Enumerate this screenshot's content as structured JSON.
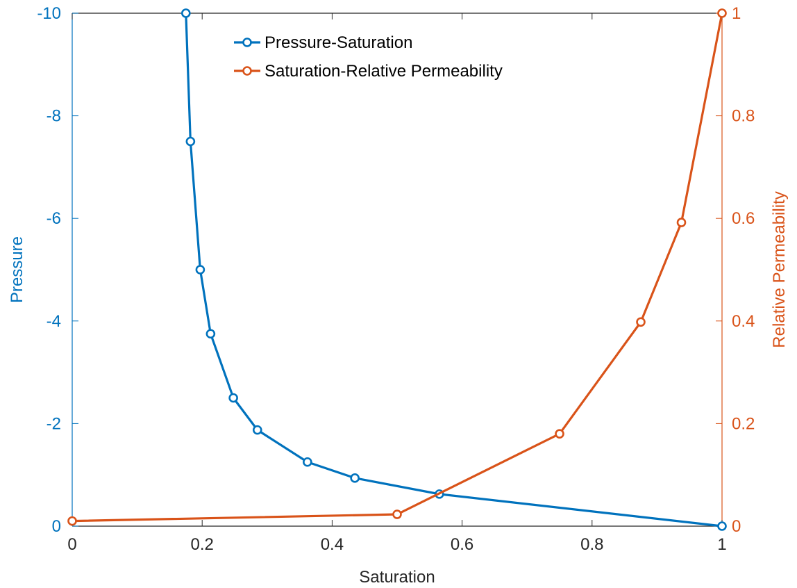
{
  "chart_data": {
    "type": "line",
    "xlabel": "Saturation",
    "ylabel_left": "Pressure",
    "ylabel_right": "Relative Permeability",
    "xlim": [
      0,
      1
    ],
    "ylim_left": [
      0,
      -10
    ],
    "ylim_right": [
      0,
      1
    ],
    "left_axis_reversed": true,
    "grid": false,
    "legend_position": "top-center",
    "x_ticks": [
      {
        "value": 0,
        "label": "0"
      },
      {
        "value": 0.2,
        "label": "0.2"
      },
      {
        "value": 0.4,
        "label": "0.4"
      },
      {
        "value": 0.6,
        "label": "0.6"
      },
      {
        "value": 0.8,
        "label": "0.8"
      },
      {
        "value": 1,
        "label": "1"
      }
    ],
    "left_ticks": [
      {
        "value": 0,
        "label": "0"
      },
      {
        "value": -2,
        "label": "-2"
      },
      {
        "value": -4,
        "label": "-4"
      },
      {
        "value": -6,
        "label": "-6"
      },
      {
        "value": -8,
        "label": "-8"
      },
      {
        "value": -10,
        "label": "-10"
      }
    ],
    "right_ticks": [
      {
        "value": 0,
        "label": "0"
      },
      {
        "value": 0.2,
        "label": "0.2"
      },
      {
        "value": 0.4,
        "label": "0.4"
      },
      {
        "value": 0.6,
        "label": "0.6"
      },
      {
        "value": 0.8,
        "label": "0.8"
      },
      {
        "value": 1,
        "label": "1"
      }
    ],
    "series": [
      {
        "name": "Pressure-Saturation",
        "axis": "left",
        "color": "#0072BD",
        "marker": "circle",
        "x": [
          0.175,
          0.182,
          0.197,
          0.213,
          0.248,
          0.285,
          0.362,
          0.435,
          0.565,
          1.0
        ],
        "y": [
          -10,
          -7.5,
          -5,
          -3.75,
          -2.5,
          -1.875,
          -1.25,
          -0.9375,
          -0.625,
          0
        ]
      },
      {
        "name": "Saturation-Relative Permeability",
        "axis": "right",
        "color": "#D95319",
        "marker": "circle",
        "x": [
          0,
          0.5,
          0.75,
          0.875,
          0.9375,
          1.0
        ],
        "y": [
          0.01,
          0.023,
          0.18,
          0.398,
          0.592,
          1.0
        ]
      }
    ]
  }
}
